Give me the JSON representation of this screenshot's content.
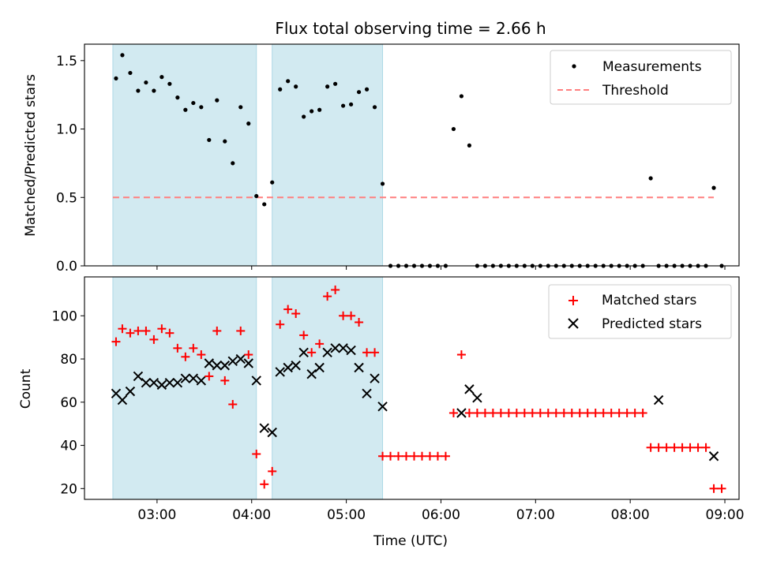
{
  "chart_data": [
    {
      "type": "scatter",
      "title": "Flux total observing time = 2.66 h",
      "ylabel": "Matched/Predicted stars",
      "xlabel": "",
      "xlim": [
        "02:14",
        "09:09"
      ],
      "ylim": [
        0,
        1.62
      ],
      "yticks": [
        0.0,
        0.5,
        1.0,
        1.5
      ],
      "ytick_labels": [
        "0.0",
        "0.5",
        "1.0",
        "1.5"
      ],
      "legend_position": "top-right",
      "shaded_intervals": [
        [
          "02:32",
          "04:03"
        ],
        [
          "04:13",
          "05:23"
        ]
      ],
      "threshold": {
        "name": "Threshold",
        "value": 0.5,
        "x_range": [
          "02:32",
          "08:53"
        ],
        "color": "#ff7f7f"
      },
      "series": [
        {
          "name": "Measurements",
          "color": "#000000",
          "marker": "dot",
          "x": [
            "02:34",
            "02:38",
            "02:43",
            "02:48",
            "02:53",
            "02:58",
            "03:03",
            "03:08",
            "03:13",
            "03:18",
            "03:23",
            "03:28",
            "03:33",
            "03:38",
            "03:43",
            "03:48",
            "03:53",
            "03:58",
            "04:03",
            "04:08",
            "04:13",
            "04:18",
            "04:23",
            "04:28",
            "04:33",
            "04:38",
            "04:43",
            "04:48",
            "04:53",
            "04:58",
            "05:03",
            "05:08",
            "05:13",
            "05:18",
            "05:23",
            "05:28",
            "05:33",
            "05:38",
            "05:43",
            "05:48",
            "05:53",
            "05:58",
            "06:03",
            "06:08",
            "06:13",
            "06:18",
            "06:23",
            "06:28",
            "06:33",
            "06:38",
            "06:43",
            "06:48",
            "06:53",
            "06:58",
            "07:03",
            "07:08",
            "07:13",
            "07:18",
            "07:23",
            "07:28",
            "07:33",
            "07:38",
            "07:43",
            "07:48",
            "07:53",
            "07:58",
            "08:03",
            "08:08",
            "08:13",
            "08:18",
            "08:23",
            "08:28",
            "08:33",
            "08:38",
            "08:43",
            "08:48",
            "08:53",
            "08:58"
          ],
          "values": [
            1.37,
            1.54,
            1.41,
            1.28,
            1.34,
            1.28,
            1.38,
            1.33,
            1.23,
            1.14,
            1.19,
            1.16,
            0.92,
            1.21,
            0.91,
            0.75,
            1.16,
            1.04,
            0.51,
            0.45,
            0.61,
            1.29,
            1.35,
            1.31,
            1.09,
            1.13,
            1.14,
            1.31,
            1.33,
            1.17,
            1.18,
            1.27,
            1.29,
            1.16,
            0.6,
            0.0,
            0.0,
            0.0,
            0.0,
            0.0,
            0.0,
            0.0,
            0.0,
            1.0,
            1.24,
            0.88,
            0.0,
            0.0,
            0.0,
            0.0,
            0.0,
            0.0,
            0.0,
            0.0,
            0.0,
            0.0,
            0.0,
            0.0,
            0.0,
            0.0,
            0.0,
            0.0,
            0.0,
            0.0,
            0.0,
            0.0,
            0.0,
            0.0,
            0.64,
            0.0,
            0.0,
            0.0,
            0.0,
            0.0,
            0.0,
            0.0,
            0.57,
            0.0
          ]
        }
      ]
    },
    {
      "type": "scatter",
      "title": "",
      "ylabel": "Count",
      "xlabel": "Time (UTC)",
      "xlim": [
        "02:14",
        "09:09"
      ],
      "ylim": [
        15,
        118
      ],
      "yticks": [
        20,
        40,
        60,
        80,
        100
      ],
      "xtick_labels": [
        "03:00",
        "04:00",
        "05:00",
        "06:00",
        "07:00",
        "08:00",
        "09:00"
      ],
      "legend_position": "top-right",
      "shaded_intervals": [
        [
          "02:32",
          "04:03"
        ],
        [
          "04:13",
          "05:23"
        ]
      ],
      "series": [
        {
          "name": "Matched stars",
          "color": "#ff0000",
          "marker": "plus",
          "x": [
            "02:34",
            "02:38",
            "02:43",
            "02:48",
            "02:53",
            "02:58",
            "03:03",
            "03:08",
            "03:13",
            "03:18",
            "03:23",
            "03:28",
            "03:33",
            "03:38",
            "03:43",
            "03:48",
            "03:53",
            "03:58",
            "04:03",
            "04:08",
            "04:13",
            "04:18",
            "04:23",
            "04:28",
            "04:33",
            "04:38",
            "04:43",
            "04:48",
            "04:53",
            "04:58",
            "05:03",
            "05:08",
            "05:13",
            "05:18",
            "05:23",
            "05:28",
            "05:33",
            "05:38",
            "05:43",
            "05:48",
            "05:53",
            "05:58",
            "06:03",
            "06:08",
            "06:13",
            "06:18",
            "06:23",
            "06:28",
            "06:33",
            "06:38",
            "06:43",
            "06:48",
            "06:53",
            "06:58",
            "07:03",
            "07:08",
            "07:13",
            "07:18",
            "07:23",
            "07:28",
            "07:33",
            "07:38",
            "07:43",
            "07:48",
            "07:53",
            "07:58",
            "08:03",
            "08:08",
            "08:13",
            "08:18",
            "08:23",
            "08:28",
            "08:33",
            "08:38",
            "08:43",
            "08:48",
            "08:53",
            "08:58"
          ],
          "values": [
            88,
            94,
            92,
            93,
            93,
            89,
            94,
            92,
            85,
            81,
            85,
            82,
            72,
            93,
            70,
            59,
            93,
            82,
            36,
            22,
            28,
            96,
            103,
            101,
            91,
            83,
            87,
            109,
            112,
            100,
            100,
            97,
            83,
            83,
            35,
            35,
            35,
            35,
            35,
            35,
            35,
            35,
            35,
            55,
            82,
            55,
            55,
            55,
            55,
            55,
            55,
            55,
            55,
            55,
            55,
            55,
            55,
            55,
            55,
            55,
            55,
            55,
            55,
            55,
            55,
            55,
            55,
            55,
            39,
            39,
            39,
            39,
            39,
            39,
            39,
            39,
            20,
            20
          ]
        },
        {
          "name": "Predicted stars",
          "color": "#000000",
          "marker": "x",
          "x": [
            "02:34",
            "02:38",
            "02:43",
            "02:48",
            "02:53",
            "02:58",
            "03:03",
            "03:08",
            "03:13",
            "03:18",
            "03:23",
            "03:28",
            "03:33",
            "03:38",
            "03:43",
            "03:48",
            "03:53",
            "03:58",
            "04:03",
            "04:08",
            "04:13",
            "04:18",
            "04:23",
            "04:28",
            "04:33",
            "04:38",
            "04:43",
            "04:48",
            "04:53",
            "04:58",
            "05:03",
            "05:08",
            "05:13",
            "05:18",
            "05:23",
            "06:13",
            "06:18",
            "06:23",
            "08:18",
            "08:53"
          ],
          "values": [
            64,
            61,
            65,
            72,
            69,
            69,
            68,
            69,
            69,
            71,
            71,
            70,
            78,
            77,
            77,
            79,
            80,
            78,
            70,
            48,
            46,
            74,
            76,
            77,
            83,
            73,
            76,
            83,
            85,
            85,
            84,
            76,
            64,
            71,
            58,
            55,
            66,
            62,
            61,
            35
          ]
        }
      ]
    }
  ],
  "colors": {
    "shade": "#add8e6",
    "threshold": "#ff7f7f",
    "matched": "#ff0000",
    "predicted": "#000000",
    "measurement": "#000000"
  }
}
